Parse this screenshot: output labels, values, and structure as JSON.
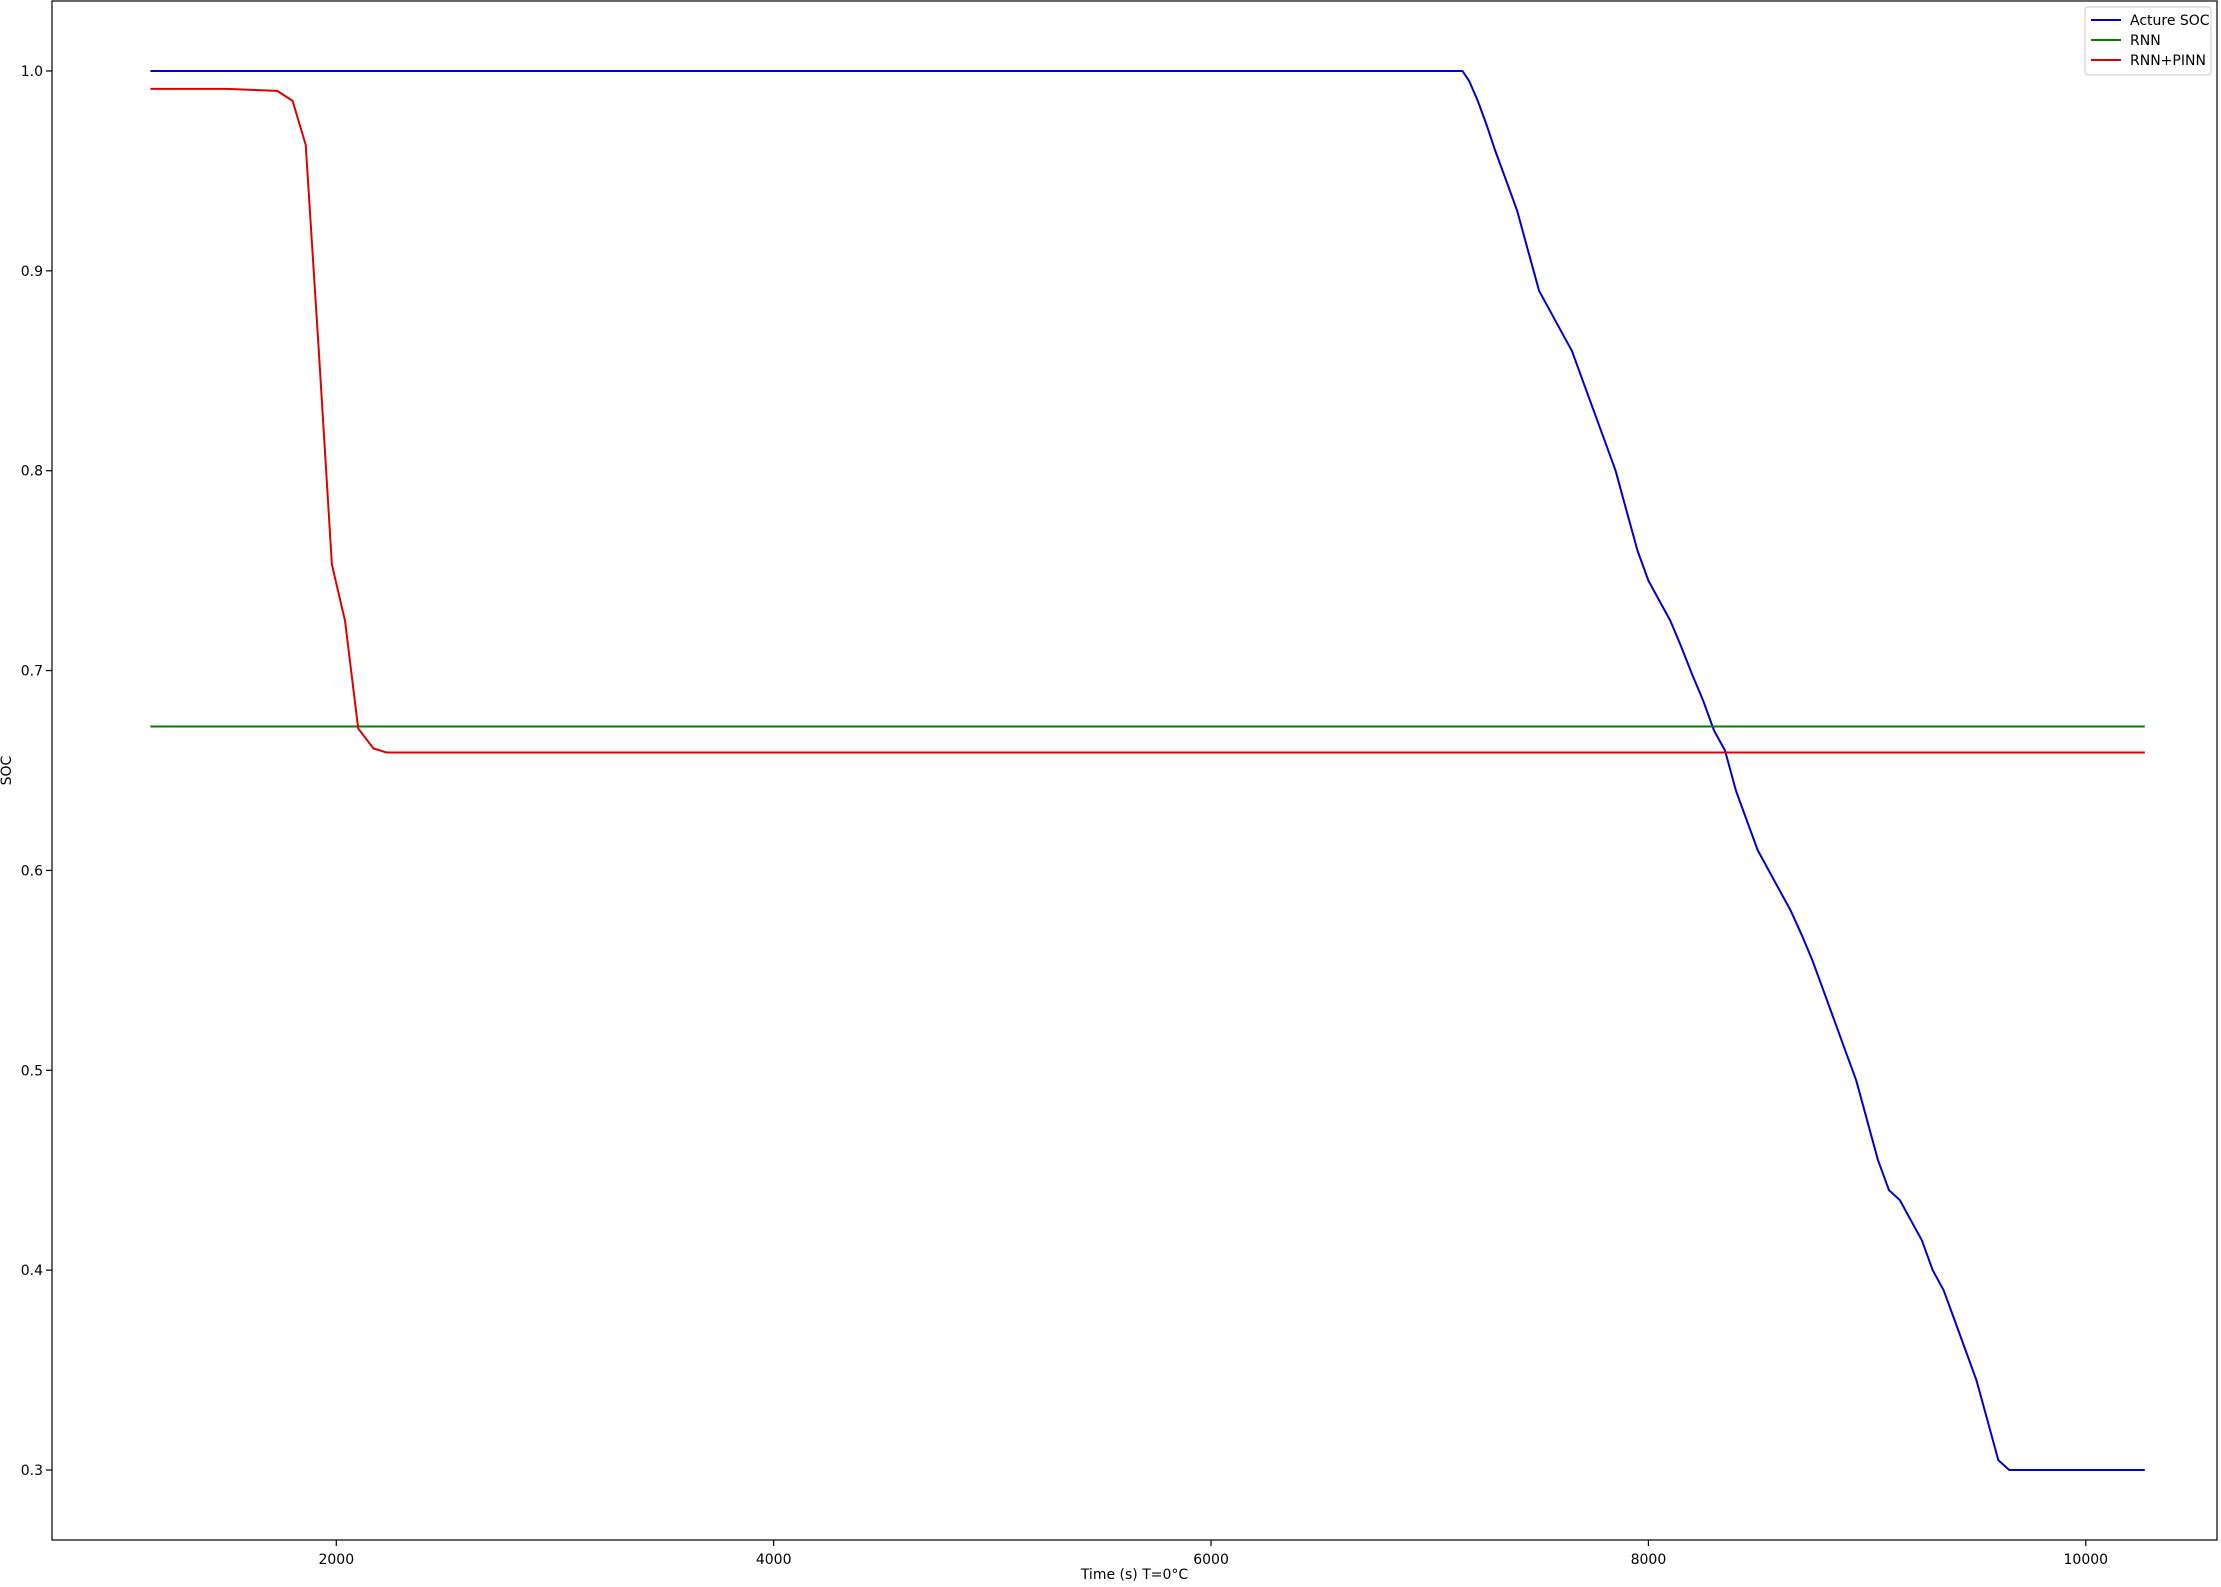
{
  "chart_data": {
    "type": "line",
    "title": "",
    "xlabel": "Time (s) T=0°C",
    "ylabel": "SOC",
    "xlim": [
      700,
      10600
    ],
    "ylim": [
      0.265,
      1.035
    ],
    "xticks": [
      2000,
      4000,
      6000,
      8000,
      10000
    ],
    "yticks": [
      0.3,
      0.4,
      0.5,
      0.6,
      0.7,
      0.8,
      0.9,
      1.0
    ],
    "xtick_labels": [
      "2000",
      "4000",
      "6000",
      "8000",
      "10000"
    ],
    "ytick_labels": [
      "0.3",
      "0.4",
      "0.5",
      "0.6",
      "0.7",
      "0.8",
      "0.9",
      "1.0"
    ],
    "grid": false,
    "legend": "top-right",
    "series": [
      {
        "name": "Acture SOC",
        "color": "#0000cc",
        "x": [
          1150,
          2000,
          4000,
          6000,
          7150,
          7180,
          7220,
          7260,
          7300,
          7350,
          7400,
          7450,
          7500,
          7550,
          7600,
          7650,
          7700,
          7750,
          7800,
          7850,
          7900,
          7950,
          8000,
          8050,
          8100,
          8150,
          8200,
          8250,
          8300,
          8350,
          8400,
          8450,
          8500,
          8550,
          8600,
          8650,
          8700,
          8750,
          8800,
          8850,
          8900,
          8950,
          9000,
          9050,
          9100,
          9150,
          9200,
          9250,
          9300,
          9350,
          9400,
          9450,
          9500,
          9550,
          9600,
          9650,
          9700,
          9750,
          9800,
          9850,
          9900,
          9950,
          10000,
          10270
        ],
        "y": [
          1.0,
          1.0,
          1.0,
          1.0,
          1.0,
          0.995,
          0.985,
          0.973,
          0.96,
          0.945,
          0.93,
          0.91,
          0.89,
          0.88,
          0.87,
          0.86,
          0.845,
          0.83,
          0.815,
          0.8,
          0.78,
          0.76,
          0.745,
          0.735,
          0.725,
          0.712,
          0.698,
          0.685,
          0.67,
          0.66,
          0.64,
          0.625,
          0.61,
          0.6,
          0.59,
          0.58,
          0.568,
          0.555,
          0.54,
          0.525,
          0.51,
          0.495,
          0.475,
          0.455,
          0.44,
          0.435,
          0.425,
          0.415,
          0.4,
          0.39,
          0.375,
          0.36,
          0.345,
          0.325,
          0.305,
          0.3,
          0.3,
          0.3,
          0.3,
          0.3,
          0.3,
          0.3,
          0.3,
          0.3
        ]
      },
      {
        "name": "RNN",
        "color": "#008000",
        "x": [
          1150,
          10270
        ],
        "y": [
          0.672,
          0.672
        ]
      },
      {
        "name": "RNN+PINN",
        "color": "#dd0000",
        "x": [
          1150,
          1500,
          1730,
          1800,
          1860,
          1920,
          1980,
          2040,
          2100,
          2170,
          2230,
          2400,
          4000,
          6000,
          8000,
          10270
        ],
        "y": [
          0.991,
          0.991,
          0.99,
          0.985,
          0.963,
          0.86,
          0.753,
          0.725,
          0.671,
          0.661,
          0.659,
          0.659,
          0.659,
          0.659,
          0.659,
          0.659
        ]
      }
    ]
  }
}
